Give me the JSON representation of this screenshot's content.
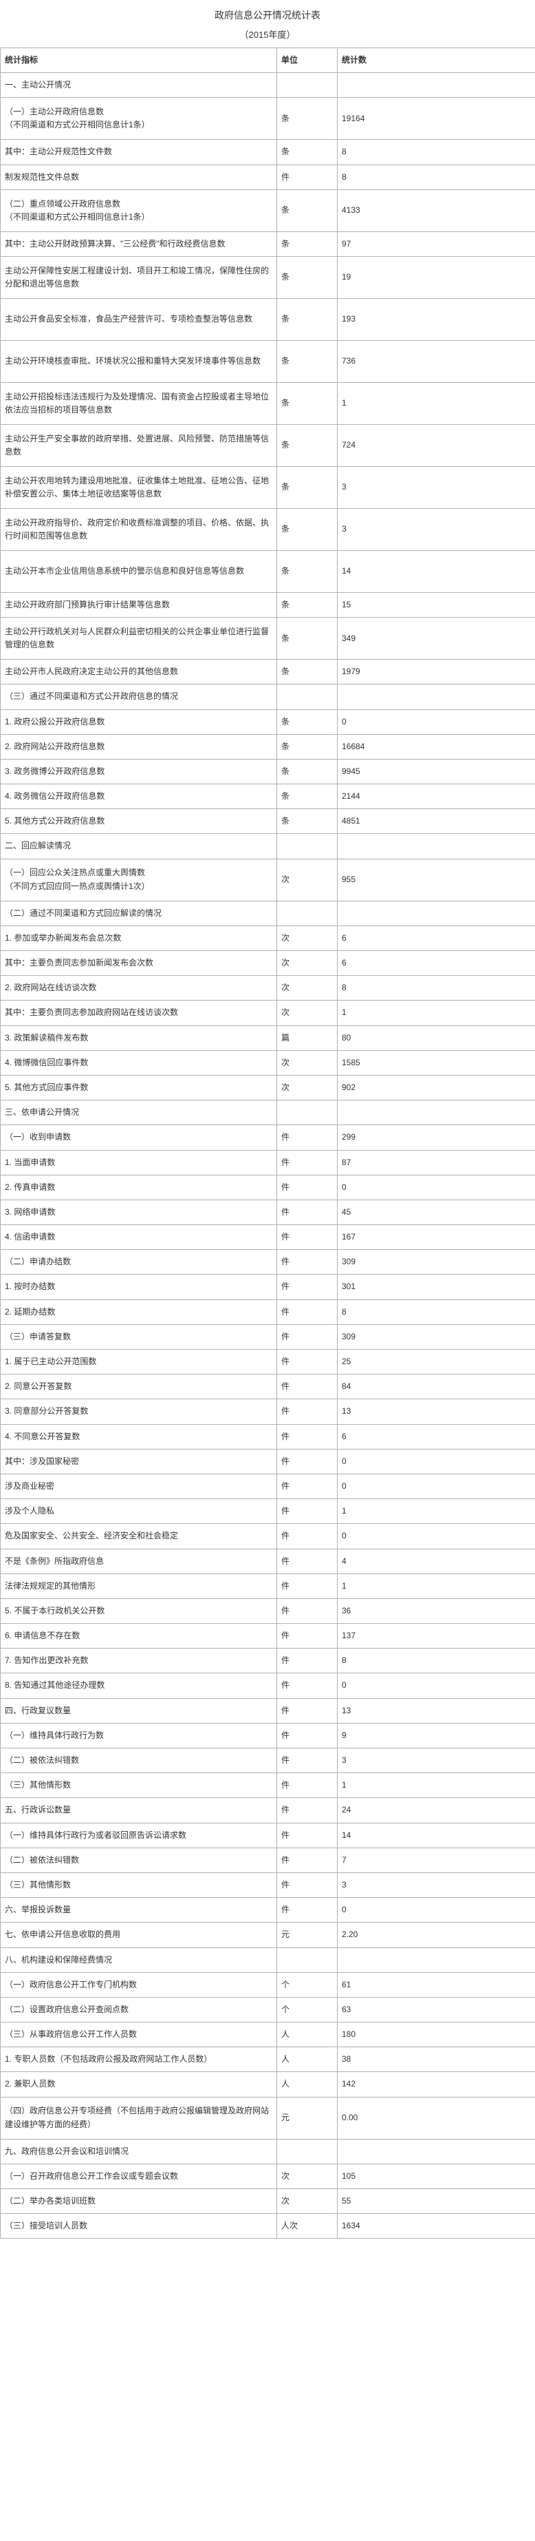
{
  "title": "政府信息公开情况统计表",
  "subtitle": "（2015年度）",
  "headers": {
    "indicator": "统计指标",
    "unit": "单位",
    "count": "统计数"
  },
  "rows": [
    {
      "ind": "一、主动公开情况",
      "unit": "",
      "cnt": ""
    },
    {
      "ind": "（一）主动公开政府信息数\n（不同渠道和方式公开相同信息计1条）",
      "unit": "条",
      "cnt": "19164",
      "tall": true
    },
    {
      "ind": "其中：主动公开规范性文件数",
      "unit": "条",
      "cnt": "8"
    },
    {
      "ind": "制发规范性文件总数",
      "unit": "件",
      "cnt": "8"
    },
    {
      "ind": "（二）重点领域公开政府信息数\n（不同渠道和方式公开相同信息计1条）",
      "unit": "条",
      "cnt": "4133",
      "tall": true
    },
    {
      "ind": "其中：主动公开财政预算决算、\"三公经费\"和行政经费信息数",
      "unit": "条",
      "cnt": "97"
    },
    {
      "ind": "主动公开保障性安居工程建设计划、项目开工和竣工情况，保障性住房的分配和退出等信息数",
      "unit": "条",
      "cnt": "19",
      "tall": true
    },
    {
      "ind": "主动公开食品安全标准，食品生产经营许可、专项检查整治等信息数",
      "unit": "条",
      "cnt": "193",
      "tall": true
    },
    {
      "ind": "主动公开环境核查审批、环境状况公报和重特大突发环境事件等信息数",
      "unit": "条",
      "cnt": "736",
      "tall": true
    },
    {
      "ind": "主动公开招投标违法违规行为及处理情况、国有资金占控股或者主导地位依法应当招标的项目等信息数",
      "unit": "条",
      "cnt": "1",
      "tall": true
    },
    {
      "ind": "主动公开生产安全事故的政府举措、处置进展、风险预警、防范措施等信息数",
      "unit": "条",
      "cnt": "724",
      "tall": true
    },
    {
      "ind": "主动公开农用地转为建设用地批准、征收集体土地批准、征地公告、征地补偿安置公示、集体土地征收结案等信息数",
      "unit": "条",
      "cnt": "3",
      "tall": true
    },
    {
      "ind": "主动公开政府指导价、政府定价和收费标准调整的项目、价格、依据、执行时间和范围等信息数",
      "unit": "条",
      "cnt": "3",
      "tall": true
    },
    {
      "ind": "主动公开本市企业信用信息系统中的警示信息和良好信息等信息数",
      "unit": "条",
      "cnt": "14",
      "tall": true
    },
    {
      "ind": "主动公开政府部门预算执行审计结果等信息数",
      "unit": "条",
      "cnt": "15"
    },
    {
      "ind": "主动公开行政机关对与人民群众利益密切相关的公共企事业单位进行监督管理的信息数",
      "unit": "条",
      "cnt": "349",
      "tall": true
    },
    {
      "ind": "主动公开市人民政府决定主动公开的其他信息数",
      "unit": "条",
      "cnt": "1979"
    },
    {
      "ind": "（三）通过不同渠道和方式公开政府信息的情况",
      "unit": "",
      "cnt": ""
    },
    {
      "ind": "1. 政府公报公开政府信息数",
      "unit": "条",
      "cnt": "0"
    },
    {
      "ind": "2. 政府网站公开政府信息数",
      "unit": "条",
      "cnt": "16684"
    },
    {
      "ind": "3. 政务微博公开政府信息数",
      "unit": "条",
      "cnt": "9945"
    },
    {
      "ind": "4. 政务微信公开政府信息数",
      "unit": "条",
      "cnt": "2144"
    },
    {
      "ind": "5. 其他方式公开政府信息数",
      "unit": "条",
      "cnt": "4851"
    },
    {
      "ind": "二、回应解读情况",
      "unit": "",
      "cnt": ""
    },
    {
      "ind": "（一）回应公众关注热点或重大舆情数\n（不同方式回应同一热点或舆情计1次）",
      "unit": "次",
      "cnt": "955",
      "tall": true
    },
    {
      "ind": "（二）通过不同渠道和方式回应解读的情况",
      "unit": "",
      "cnt": ""
    },
    {
      "ind": "1. 参加或举办新闻发布会总次数",
      "unit": "次",
      "cnt": "6"
    },
    {
      "ind": "其中：主要负责同志参加新闻发布会次数",
      "unit": "次",
      "cnt": "6"
    },
    {
      "ind": "2. 政府网站在线访谈次数",
      "unit": "次",
      "cnt": "8"
    },
    {
      "ind": "其中：主要负责同志参加政府网站在线访谈次数",
      "unit": "次",
      "cnt": "1"
    },
    {
      "ind": "3. 政策解读稿件发布数",
      "unit": "篇",
      "cnt": "80"
    },
    {
      "ind": "4. 微博微信回应事件数",
      "unit": "次",
      "cnt": "1585"
    },
    {
      "ind": "5. 其他方式回应事件数",
      "unit": "次",
      "cnt": "902"
    },
    {
      "ind": "三、依申请公开情况",
      "unit": "",
      "cnt": ""
    },
    {
      "ind": "（一）收到申请数",
      "unit": "件",
      "cnt": "299"
    },
    {
      "ind": "1. 当面申请数",
      "unit": "件",
      "cnt": "87"
    },
    {
      "ind": "2. 传真申请数",
      "unit": "件",
      "cnt": "0"
    },
    {
      "ind": "3. 网络申请数",
      "unit": "件",
      "cnt": "45"
    },
    {
      "ind": "4. 信函申请数",
      "unit": "件",
      "cnt": "167"
    },
    {
      "ind": "（二）申请办结数",
      "unit": "件",
      "cnt": "309"
    },
    {
      "ind": "1. 按时办结数",
      "unit": "件",
      "cnt": "301"
    },
    {
      "ind": "2. 延期办结数",
      "unit": "件",
      "cnt": "8"
    },
    {
      "ind": "（三）申请答复数",
      "unit": "件",
      "cnt": "309"
    },
    {
      "ind": "1. 属于已主动公开范围数",
      "unit": "件",
      "cnt": "25"
    },
    {
      "ind": "2. 同意公开答复数",
      "unit": "件",
      "cnt": "84"
    },
    {
      "ind": "3. 同意部分公开答复数",
      "unit": "件",
      "cnt": "13"
    },
    {
      "ind": "4. 不同意公开答复数",
      "unit": "件",
      "cnt": "6"
    },
    {
      "ind": "其中：涉及国家秘密",
      "unit": "件",
      "cnt": "0"
    },
    {
      "ind": "涉及商业秘密",
      "unit": "件",
      "cnt": "0"
    },
    {
      "ind": "涉及个人隐私",
      "unit": "件",
      "cnt": "1"
    },
    {
      "ind": "危及国家安全、公共安全、经济安全和社会稳定",
      "unit": "件",
      "cnt": "0"
    },
    {
      "ind": "不是《条例》所指政府信息",
      "unit": "件",
      "cnt": "4"
    },
    {
      "ind": "法律法规规定的其他情形",
      "unit": "件",
      "cnt": "1"
    },
    {
      "ind": "5. 不属于本行政机关公开数",
      "unit": "件",
      "cnt": "36"
    },
    {
      "ind": "6. 申请信息不存在数",
      "unit": "件",
      "cnt": "137"
    },
    {
      "ind": "7. 告知作出更改补充数",
      "unit": "件",
      "cnt": "8"
    },
    {
      "ind": "8. 告知通过其他途径办理数",
      "unit": "件",
      "cnt": "0"
    },
    {
      "ind": "四、行政复议数量",
      "unit": "件",
      "cnt": "13"
    },
    {
      "ind": "（一）维持具体行政行为数",
      "unit": "件",
      "cnt": "9"
    },
    {
      "ind": "（二）被依法纠错数",
      "unit": "件",
      "cnt": "3"
    },
    {
      "ind": "（三）其他情形数",
      "unit": "件",
      "cnt": "1"
    },
    {
      "ind": "五、行政诉讼数量",
      "unit": "件",
      "cnt": "24"
    },
    {
      "ind": "（一）维持具体行政行为或者驳回原告诉讼请求数",
      "unit": "件",
      "cnt": "14"
    },
    {
      "ind": "（二）被依法纠错数",
      "unit": "件",
      "cnt": "7"
    },
    {
      "ind": "（三）其他情形数",
      "unit": "件",
      "cnt": "3"
    },
    {
      "ind": "六、举报投诉数量",
      "unit": "件",
      "cnt": "0"
    },
    {
      "ind": "七、依申请公开信息收取的费用",
      "unit": "元",
      "cnt": "2.20"
    },
    {
      "ind": "八、机构建设和保障经费情况",
      "unit": "",
      "cnt": ""
    },
    {
      "ind": "（一）政府信息公开工作专门机构数",
      "unit": "个",
      "cnt": "61"
    },
    {
      "ind": "（二）设置政府信息公开查阅点数",
      "unit": "个",
      "cnt": "63"
    },
    {
      "ind": "（三）从事政府信息公开工作人员数",
      "unit": "人",
      "cnt": "180"
    },
    {
      "ind": "1. 专职人员数（不包括政府公报及政府网站工作人员数）",
      "unit": "人",
      "cnt": "38"
    },
    {
      "ind": "2. 兼职人员数",
      "unit": "人",
      "cnt": "142"
    },
    {
      "ind": "（四）政府信息公开专项经费（不包括用于政府公报编辑管理及政府网站建设维护等方面的经费）",
      "unit": "元",
      "cnt": "0.00",
      "tall": true
    },
    {
      "ind": "九、政府信息公开会议和培训情况",
      "unit": "",
      "cnt": ""
    },
    {
      "ind": "（一）召开政府信息公开工作会议或专题会议数",
      "unit": "次",
      "cnt": "105"
    },
    {
      "ind": "（二）举办各类培训班数",
      "unit": "次",
      "cnt": "55"
    },
    {
      "ind": "（三）接受培训人员数",
      "unit": "人次",
      "cnt": "1634"
    }
  ]
}
